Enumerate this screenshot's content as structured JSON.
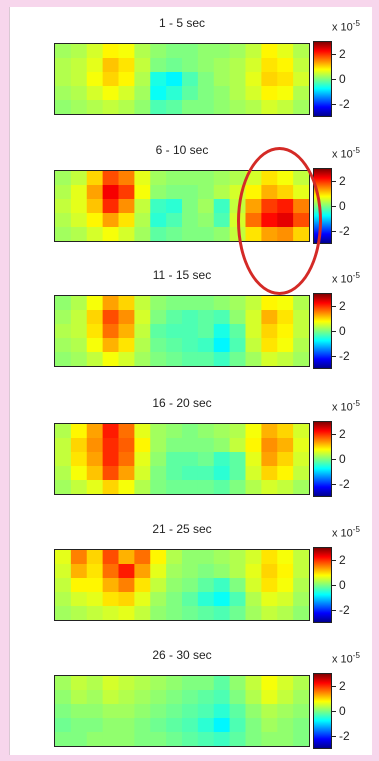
{
  "scale_label_base": "x 10",
  "scale_label_exponent": "-5",
  "colorbar_ticks": [
    "2",
    "0",
    "-2"
  ],
  "colorbar_tick_values": [
    2,
    0,
    -2
  ],
  "chart_data": [
    {
      "type": "heatmap",
      "title": "1 - 5 sec",
      "clim": [
        -3,
        3
      ],
      "rows": 5,
      "cols": 16,
      "values": [
        [
          0.2,
          0.3,
          0.5,
          0.8,
          0.7,
          0.3,
          0.1,
          0.0,
          0.0,
          0.1,
          0.1,
          0.2,
          0.4,
          0.8,
          0.6,
          0.3
        ],
        [
          0.3,
          0.4,
          0.6,
          1.1,
          0.9,
          0.4,
          0.0,
          -0.1,
          0.0,
          0.1,
          0.2,
          0.3,
          0.5,
          0.9,
          0.8,
          0.4
        ],
        [
          0.3,
          0.4,
          0.7,
          1.0,
          0.8,
          0.3,
          -0.6,
          -0.8,
          -0.3,
          0.0,
          0.2,
          0.3,
          0.6,
          1.0,
          0.9,
          0.5
        ],
        [
          0.2,
          0.3,
          0.5,
          0.7,
          0.5,
          0.2,
          -0.7,
          -0.5,
          -0.2,
          0.0,
          0.1,
          0.3,
          0.5,
          0.8,
          0.7,
          0.3
        ],
        [
          0.1,
          0.2,
          0.3,
          0.4,
          0.3,
          0.1,
          -0.3,
          -0.2,
          0.0,
          0.0,
          0.1,
          0.2,
          0.3,
          0.5,
          0.4,
          0.2
        ]
      ]
    },
    {
      "type": "heatmap",
      "title": "6 - 10 sec",
      "clim": [
        -3,
        3
      ],
      "rows": 5,
      "cols": 16,
      "values": [
        [
          0.2,
          0.4,
          1.0,
          1.8,
          1.5,
          0.6,
          0.2,
          0.1,
          0.1,
          0.1,
          0.2,
          0.3,
          0.5,
          0.9,
          0.7,
          0.4
        ],
        [
          0.3,
          0.6,
          1.3,
          2.3,
          1.9,
          0.7,
          0.1,
          0.0,
          0.0,
          0.1,
          0.3,
          0.5,
          0.8,
          1.2,
          1.0,
          0.6
        ],
        [
          0.4,
          0.6,
          1.1,
          2.0,
          1.4,
          0.4,
          -0.4,
          -0.5,
          0.0,
          0.2,
          -0.4,
          0.4,
          1.3,
          1.9,
          2.1,
          1.5
        ],
        [
          0.3,
          0.5,
          0.8,
          1.3,
          0.9,
          0.3,
          -0.5,
          -0.3,
          0.0,
          0.1,
          -0.3,
          0.5,
          1.6,
          2.2,
          2.4,
          1.8
        ],
        [
          0.2,
          0.3,
          0.5,
          0.7,
          0.5,
          0.2,
          -0.2,
          -0.1,
          0.0,
          0.0,
          0.1,
          0.4,
          0.9,
          1.3,
          1.4,
          1.0
        ]
      ]
    },
    {
      "type": "heatmap",
      "title": "11 - 15 sec",
      "clim": [
        -3,
        3
      ],
      "rows": 5,
      "cols": 16,
      "values": [
        [
          0.1,
          0.3,
          0.7,
          1.3,
          1.0,
          0.4,
          0.1,
          0.0,
          0.0,
          0.0,
          0.1,
          0.2,
          0.4,
          0.8,
          0.7,
          0.3
        ],
        [
          0.2,
          0.4,
          1.0,
          1.8,
          1.4,
          0.5,
          0.0,
          -0.2,
          -0.3,
          -0.2,
          -0.3,
          0.1,
          0.5,
          1.2,
          0.9,
          0.4
        ],
        [
          0.3,
          0.4,
          0.9,
          1.6,
          1.2,
          0.4,
          -0.2,
          -0.3,
          -0.3,
          -0.2,
          -0.6,
          -0.2,
          0.5,
          1.0,
          0.8,
          0.4
        ],
        [
          0.2,
          0.3,
          0.7,
          1.2,
          0.9,
          0.3,
          -0.1,
          -0.2,
          -0.3,
          -0.4,
          -0.8,
          -0.3,
          0.4,
          0.9,
          0.7,
          0.3
        ],
        [
          0.1,
          0.2,
          0.4,
          0.7,
          0.5,
          0.2,
          0.0,
          -0.1,
          -0.2,
          -0.2,
          -0.4,
          -0.1,
          0.2,
          0.5,
          0.4,
          0.2
        ]
      ]
    },
    {
      "type": "heatmap",
      "title": "16 - 20 sec",
      "clim": [
        -3,
        3
      ],
      "rows": 5,
      "cols": 16,
      "values": [
        [
          0.3,
          0.8,
          1.3,
          2.1,
          1.6,
          0.6,
          0.2,
          0.1,
          0.0,
          0.1,
          0.2,
          0.3,
          0.7,
          1.2,
          1.0,
          0.5
        ],
        [
          0.4,
          1.0,
          1.4,
          2.0,
          1.7,
          0.8,
          0.2,
          0.0,
          0.0,
          0.0,
          0.1,
          0.4,
          0.8,
          1.4,
          1.2,
          0.6
        ],
        [
          0.4,
          0.9,
          1.3,
          2.0,
          1.6,
          0.6,
          0.1,
          -0.2,
          -0.2,
          -0.1,
          -0.4,
          -0.2,
          0.6,
          1.3,
          1.0,
          0.5
        ],
        [
          0.3,
          0.7,
          1.1,
          1.8,
          1.3,
          0.5,
          0.0,
          -0.2,
          -0.3,
          -0.3,
          -0.5,
          -0.2,
          0.5,
          1.0,
          0.8,
          0.4
        ],
        [
          0.2,
          0.4,
          0.6,
          1.0,
          0.7,
          0.3,
          0.0,
          -0.1,
          -0.1,
          -0.1,
          -0.2,
          0.0,
          0.3,
          0.5,
          0.4,
          0.2
        ]
      ]
    },
    {
      "type": "heatmap",
      "title": "21 - 25 sec",
      "clim": [
        -3,
        3
      ],
      "rows": 5,
      "cols": 16,
      "values": [
        [
          0.6,
          1.5,
          1.0,
          1.8,
          1.2,
          1.6,
          0.8,
          0.3,
          0.1,
          0.1,
          0.2,
          0.3,
          0.5,
          0.9,
          0.7,
          0.4
        ],
        [
          0.5,
          1.2,
          0.9,
          1.6,
          2.1,
          1.3,
          0.6,
          0.2,
          0.1,
          0.0,
          0.1,
          0.3,
          0.6,
          1.0,
          0.8,
          0.4
        ],
        [
          0.4,
          0.8,
          0.8,
          1.2,
          1.5,
          0.9,
          0.4,
          0.1,
          0.0,
          -0.2,
          -0.4,
          0.0,
          0.5,
          0.9,
          0.7,
          0.3
        ],
        [
          0.3,
          0.5,
          0.6,
          0.9,
          1.0,
          0.6,
          0.2,
          0.0,
          -0.2,
          -0.5,
          -0.7,
          -0.3,
          0.3,
          0.6,
          0.5,
          0.2
        ],
        [
          0.2,
          0.3,
          0.4,
          0.5,
          0.6,
          0.4,
          0.1,
          0.0,
          -0.1,
          -0.2,
          -0.3,
          -0.1,
          0.2,
          0.4,
          0.3,
          0.1
        ]
      ]
    },
    {
      "type": "heatmap",
      "title": "26 - 30 sec",
      "clim": [
        -3,
        3
      ],
      "rows": 5,
      "cols": 16,
      "values": [
        [
          0.2,
          0.4,
          0.3,
          0.5,
          0.4,
          0.3,
          0.2,
          0.1,
          0.0,
          0.0,
          -0.2,
          0.1,
          0.4,
          0.7,
          0.5,
          0.3
        ],
        [
          0.1,
          0.3,
          0.2,
          0.4,
          0.3,
          0.2,
          0.1,
          0.0,
          -0.1,
          -0.2,
          -0.3,
          0.0,
          0.3,
          0.6,
          0.4,
          0.2
        ],
        [
          0.0,
          0.1,
          0.1,
          0.2,
          0.2,
          0.1,
          0.0,
          -0.1,
          -0.2,
          -0.3,
          -0.5,
          -0.2,
          0.1,
          0.3,
          0.2,
          0.1
        ],
        [
          -0.1,
          0.0,
          0.0,
          0.1,
          0.1,
          0.0,
          -0.1,
          -0.2,
          -0.3,
          -0.5,
          -0.8,
          -0.3,
          0.0,
          0.2,
          0.1,
          0.0
        ],
        [
          0.0,
          0.0,
          0.1,
          0.1,
          0.1,
          0.0,
          0.0,
          -0.1,
          -0.2,
          -0.3,
          -0.4,
          -0.2,
          0.0,
          0.1,
          0.1,
          0.0
        ]
      ]
    }
  ],
  "annotation": {
    "shape": "ellipse",
    "color": "#d42a26",
    "target_chart": "6 - 10 sec"
  }
}
